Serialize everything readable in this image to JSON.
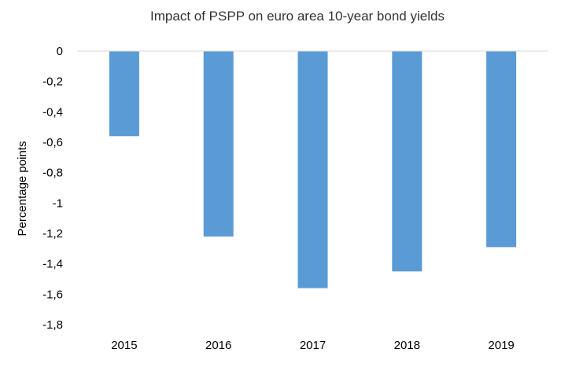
{
  "chart_data": {
    "type": "bar",
    "title": "Impact of PSPP on euro area 10-year bond yields",
    "xlabel": "",
    "ylabel": "Percentage points",
    "categories": [
      "2015",
      "2016",
      "2017",
      "2018",
      "2019"
    ],
    "values": [
      -0.56,
      -1.22,
      -1.56,
      -1.45,
      -1.29
    ],
    "ylim": [
      -1.8,
      0
    ],
    "yticks": [
      0,
      -0.2,
      -0.4,
      -0.6,
      -0.8,
      -1,
      -1.2,
      -1.4,
      -1.6,
      -1.8
    ],
    "ytick_labels": [
      "0",
      "-0,2",
      "-0,4",
      "-0,6",
      "-0,8",
      "-1",
      "-1,2",
      "-1,4",
      "-1,6",
      "-1,8"
    ],
    "bar_color": "#5b9bd5",
    "grid": false,
    "legend": "none"
  }
}
